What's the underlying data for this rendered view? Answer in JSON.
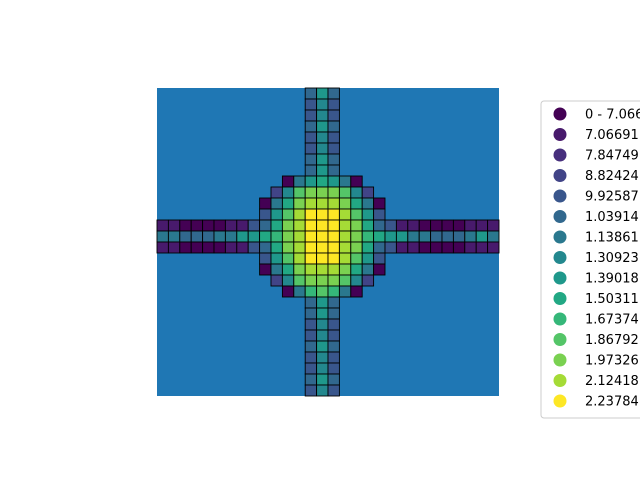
{
  "chart_data": {
    "type": "heatmap",
    "title": "",
    "xlabel": "",
    "ylabel": "",
    "axes_visible": false,
    "background_color": "#1f77b4",
    "cell_edge_color": "#000000",
    "grid": {
      "rows": 28,
      "cols": 30,
      "band_center_rows": [
        12,
        13,
        14
      ],
      "band_center_cols": [
        13,
        14,
        15
      ]
    },
    "legend": {
      "placement": "right",
      "entries": [
        {
          "label": "0 - 7.066",
          "color": "#440154"
        },
        {
          "label": "7.06691",
          "color": "#481a6c"
        },
        {
          "label": "7.84749",
          "color": "#472f7d"
        },
        {
          "label": "8.82424",
          "color": "#414487"
        },
        {
          "label": "9.92587",
          "color": "#39568c"
        },
        {
          "label": "1.03914",
          "color": "#31688e"
        },
        {
          "label": "1.13861",
          "color": "#2a788e"
        },
        {
          "label": "1.30923",
          "color": "#23888e"
        },
        {
          "label": "1.39018",
          "color": "#1f988b"
        },
        {
          "label": "1.50311",
          "color": "#22a884"
        },
        {
          "label": "1.67374",
          "color": "#35b779"
        },
        {
          "label": "1.86792",
          "color": "#54c568"
        },
        {
          "label": "1.97326",
          "color": "#7ad151"
        },
        {
          "label": "2.12418",
          "color": "#a5db36"
        },
        {
          "label": "2.23784",
          "color": "#fde725"
        }
      ]
    },
    "cells": [
      [
        0,
        13,
        5
      ],
      [
        0,
        14,
        8
      ],
      [
        0,
        15,
        5
      ],
      [
        1,
        13,
        4
      ],
      [
        1,
        14,
        7
      ],
      [
        1,
        15,
        4
      ],
      [
        2,
        13,
        4
      ],
      [
        2,
        14,
        7
      ],
      [
        2,
        15,
        4
      ],
      [
        3,
        13,
        5
      ],
      [
        3,
        14,
        8
      ],
      [
        3,
        15,
        5
      ],
      [
        4,
        13,
        4
      ],
      [
        4,
        14,
        7
      ],
      [
        4,
        15,
        4
      ],
      [
        5,
        13,
        4
      ],
      [
        5,
        14,
        7
      ],
      [
        5,
        15,
        4
      ],
      [
        6,
        13,
        5
      ],
      [
        6,
        14,
        8
      ],
      [
        6,
        15,
        5
      ],
      [
        7,
        13,
        5
      ],
      [
        7,
        14,
        8
      ],
      [
        7,
        15,
        5
      ],
      [
        8,
        11,
        0
      ],
      [
        8,
        12,
        6
      ],
      [
        8,
        13,
        8
      ],
      [
        8,
        14,
        9
      ],
      [
        8,
        15,
        8
      ],
      [
        8,
        16,
        6
      ],
      [
        8,
        17,
        0
      ],
      [
        9,
        10,
        3
      ],
      [
        9,
        11,
        7
      ],
      [
        9,
        12,
        11
      ],
      [
        9,
        13,
        12
      ],
      [
        9,
        14,
        12
      ],
      [
        9,
        15,
        12
      ],
      [
        9,
        16,
        11
      ],
      [
        9,
        17,
        7
      ],
      [
        9,
        18,
        3
      ],
      [
        10,
        9,
        0
      ],
      [
        10,
        10,
        6
      ],
      [
        10,
        11,
        9
      ],
      [
        10,
        12,
        12
      ],
      [
        10,
        13,
        13
      ],
      [
        10,
        14,
        13
      ],
      [
        10,
        15,
        13
      ],
      [
        10,
        16,
        12
      ],
      [
        10,
        17,
        9
      ],
      [
        10,
        18,
        6
      ],
      [
        10,
        19,
        0
      ],
      [
        11,
        9,
        4
      ],
      [
        11,
        10,
        8
      ],
      [
        11,
        11,
        11
      ],
      [
        11,
        12,
        13
      ],
      [
        11,
        13,
        14
      ],
      [
        11,
        14,
        14
      ],
      [
        11,
        15,
        14
      ],
      [
        11,
        16,
        13
      ],
      [
        11,
        17,
        11
      ],
      [
        11,
        18,
        8
      ],
      [
        11,
        19,
        4
      ],
      [
        12,
        0,
        1
      ],
      [
        12,
        1,
        1
      ],
      [
        12,
        2,
        0
      ],
      [
        12,
        3,
        0
      ],
      [
        12,
        4,
        0
      ],
      [
        12,
        5,
        0
      ],
      [
        12,
        6,
        1
      ],
      [
        12,
        7,
        1
      ],
      [
        12,
        8,
        4
      ],
      [
        12,
        9,
        5
      ],
      [
        12,
        10,
        9
      ],
      [
        12,
        11,
        12
      ],
      [
        12,
        12,
        13
      ],
      [
        12,
        13,
        14
      ],
      [
        12,
        14,
        14
      ],
      [
        12,
        15,
        14
      ],
      [
        12,
        16,
        13
      ],
      [
        12,
        17,
        12
      ],
      [
        12,
        18,
        9
      ],
      [
        12,
        19,
        5
      ],
      [
        12,
        20,
        4
      ],
      [
        12,
        21,
        1
      ],
      [
        12,
        22,
        1
      ],
      [
        12,
        23,
        0
      ],
      [
        12,
        24,
        0
      ],
      [
        12,
        25,
        0
      ],
      [
        12,
        26,
        0
      ],
      [
        12,
        27,
        1
      ],
      [
        12,
        28,
        1
      ],
      [
        12,
        29,
        1
      ],
      [
        13,
        0,
        6
      ],
      [
        13,
        1,
        6
      ],
      [
        13,
        2,
        5
      ],
      [
        13,
        3,
        5
      ],
      [
        13,
        4,
        5
      ],
      [
        13,
        5,
        6
      ],
      [
        13,
        6,
        6
      ],
      [
        13,
        7,
        8
      ],
      [
        13,
        8,
        8
      ],
      [
        13,
        9,
        9
      ],
      [
        13,
        10,
        10
      ],
      [
        13,
        11,
        12
      ],
      [
        13,
        12,
        13
      ],
      [
        13,
        13,
        14
      ],
      [
        13,
        14,
        14
      ],
      [
        13,
        15,
        14
      ],
      [
        13,
        16,
        13
      ],
      [
        13,
        17,
        12
      ],
      [
        13,
        18,
        10
      ],
      [
        13,
        19,
        9
      ],
      [
        13,
        20,
        8
      ],
      [
        13,
        21,
        8
      ],
      [
        13,
        22,
        6
      ],
      [
        13,
        23,
        6
      ],
      [
        13,
        24,
        5
      ],
      [
        13,
        25,
        5
      ],
      [
        13,
        26,
        5
      ],
      [
        13,
        27,
        6
      ],
      [
        13,
        28,
        8
      ],
      [
        13,
        29,
        6
      ],
      [
        14,
        0,
        1
      ],
      [
        14,
        1,
        1
      ],
      [
        14,
        2,
        0
      ],
      [
        14,
        3,
        0
      ],
      [
        14,
        4,
        0
      ],
      [
        14,
        5,
        0
      ],
      [
        14,
        6,
        1
      ],
      [
        14,
        7,
        1
      ],
      [
        14,
        8,
        4
      ],
      [
        14,
        9,
        5
      ],
      [
        14,
        10,
        9
      ],
      [
        14,
        11,
        12
      ],
      [
        14,
        12,
        13
      ],
      [
        14,
        13,
        14
      ],
      [
        14,
        14,
        14
      ],
      [
        14,
        15,
        14
      ],
      [
        14,
        16,
        13
      ],
      [
        14,
        17,
        12
      ],
      [
        14,
        18,
        9
      ],
      [
        14,
        19,
        5
      ],
      [
        14,
        20,
        4
      ],
      [
        14,
        21,
        1
      ],
      [
        14,
        22,
        1
      ],
      [
        14,
        23,
        0
      ],
      [
        14,
        24,
        0
      ],
      [
        14,
        25,
        0
      ],
      [
        14,
        26,
        0
      ],
      [
        14,
        27,
        1
      ],
      [
        14,
        28,
        1
      ],
      [
        14,
        29,
        1
      ],
      [
        15,
        9,
        4
      ],
      [
        15,
        10,
        8
      ],
      [
        15,
        11,
        11
      ],
      [
        15,
        12,
        13
      ],
      [
        15,
        13,
        14
      ],
      [
        15,
        14,
        14
      ],
      [
        15,
        15,
        14
      ],
      [
        15,
        16,
        13
      ],
      [
        15,
        17,
        11
      ],
      [
        15,
        18,
        8
      ],
      [
        15,
        19,
        4
      ],
      [
        16,
        9,
        0
      ],
      [
        16,
        10,
        6
      ],
      [
        16,
        11,
        9
      ],
      [
        16,
        12,
        12
      ],
      [
        16,
        13,
        13
      ],
      [
        16,
        14,
        13
      ],
      [
        16,
        15,
        13
      ],
      [
        16,
        16,
        12
      ],
      [
        16,
        17,
        9
      ],
      [
        16,
        18,
        6
      ],
      [
        16,
        19,
        0
      ],
      [
        17,
        10,
        3
      ],
      [
        17,
        11,
        7
      ],
      [
        17,
        12,
        11
      ],
      [
        17,
        13,
        12
      ],
      [
        17,
        14,
        12
      ],
      [
        17,
        15,
        12
      ],
      [
        17,
        16,
        11
      ],
      [
        17,
        17,
        7
      ],
      [
        17,
        18,
        3
      ],
      [
        18,
        11,
        0
      ],
      [
        18,
        12,
        6
      ],
      [
        18,
        13,
        10
      ],
      [
        18,
        14,
        11
      ],
      [
        18,
        15,
        10
      ],
      [
        18,
        16,
        6
      ],
      [
        18,
        17,
        0
      ],
      [
        19,
        13,
        5
      ],
      [
        19,
        14,
        8
      ],
      [
        19,
        15,
        5
      ],
      [
        20,
        13,
        5
      ],
      [
        20,
        14,
        8
      ],
      [
        20,
        15,
        5
      ],
      [
        21,
        13,
        4
      ],
      [
        21,
        14,
        7
      ],
      [
        21,
        15,
        4
      ],
      [
        22,
        13,
        4
      ],
      [
        22,
        14,
        7
      ],
      [
        22,
        15,
        4
      ],
      [
        23,
        13,
        5
      ],
      [
        23,
        14,
        8
      ],
      [
        23,
        15,
        5
      ],
      [
        24,
        13,
        4
      ],
      [
        24,
        14,
        7
      ],
      [
        24,
        15,
        4
      ],
      [
        25,
        13,
        4
      ],
      [
        25,
        14,
        7
      ],
      [
        25,
        15,
        4
      ],
      [
        26,
        13,
        5
      ],
      [
        26,
        14,
        8
      ],
      [
        26,
        15,
        5
      ],
      [
        27,
        13,
        4
      ],
      [
        27,
        14,
        7
      ],
      [
        27,
        15,
        4
      ]
    ]
  }
}
